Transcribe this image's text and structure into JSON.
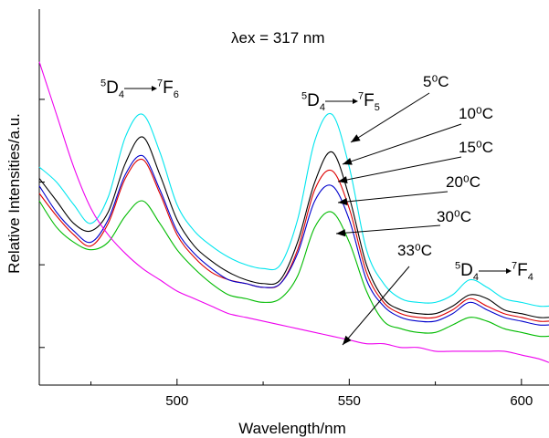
{
  "chart_data": {
    "type": "line",
    "title": "λex = 317 nm",
    "xlabel": "Wavelength/nm",
    "ylabel": "Relative Intensities/a.u.",
    "xlim": [
      460,
      608
    ],
    "ylim": [
      0,
      100
    ],
    "xticks": [
      500,
      550,
      600
    ],
    "x": [
      460,
      465,
      470,
      475,
      480,
      485,
      490,
      495,
      500,
      505,
      510,
      515,
      520,
      525,
      530,
      535,
      540,
      545,
      550,
      555,
      560,
      565,
      570,
      575,
      580,
      585,
      590,
      595,
      600,
      605,
      608
    ],
    "series": [
      {
        "name": "5⁰C",
        "color": "#00e5ee",
        "values": [
          58,
          54,
          48,
          43,
          50,
          66,
          72,
          62,
          48,
          41,
          37,
          34,
          32,
          31,
          32,
          44,
          65,
          72,
          58,
          36,
          27,
          23,
          22,
          22,
          24,
          28,
          26,
          23,
          22,
          21,
          21
        ]
      },
      {
        "name": "10⁰C",
        "color": "#000000",
        "values": [
          55,
          49,
          43,
          41,
          46,
          59,
          66,
          56,
          44,
          37,
          33,
          30,
          28,
          27,
          28,
          38,
          54,
          62,
          50,
          32,
          23,
          20,
          19,
          19,
          21,
          24,
          23,
          20,
          19,
          18,
          18
        ]
      },
      {
        "name": "15⁰C",
        "color": "#dd0000",
        "values": [
          51,
          45,
          40,
          37,
          43,
          55,
          60,
          51,
          40,
          34,
          30,
          28,
          27,
          26,
          27,
          36,
          52,
          57,
          47,
          30,
          22,
          19,
          18,
          18,
          20,
          23,
          21,
          19,
          18,
          17,
          17
        ]
      },
      {
        "name": "20⁰C",
        "color": "#0000cc",
        "values": [
          53,
          46,
          41,
          38,
          44,
          56,
          61,
          52,
          41,
          35,
          31,
          28,
          27,
          26,
          27,
          35,
          49,
          53,
          44,
          28,
          21,
          18,
          17,
          17,
          19,
          22,
          20,
          18,
          17,
          16,
          16
        ]
      },
      {
        "name": "30⁰C",
        "color": "#00bb00",
        "values": [
          49,
          42,
          38,
          36,
          38,
          45,
          49,
          43,
          36,
          31,
          27,
          24,
          23,
          22,
          23,
          29,
          42,
          46,
          38,
          25,
          17,
          15,
          14,
          14,
          16,
          18,
          17,
          15,
          14,
          13,
          13
        ]
      },
      {
        "name": "33⁰C",
        "color": "#ee00ee",
        "values": [
          86,
          72,
          58,
          47,
          40,
          35,
          31,
          28,
          25,
          23,
          21,
          19,
          18,
          17,
          16,
          15,
          14,
          13,
          12,
          11,
          11,
          10,
          10,
          9,
          9,
          9,
          9,
          9,
          8,
          7,
          6
        ]
      }
    ],
    "curve_labels": [
      "5⁰C",
      "10⁰C",
      "15⁰C",
      "20⁰C",
      "30⁰C",
      "33⁰C"
    ],
    "transitions": [
      {
        "upper": "5",
        "upper_sub": "D",
        "upper_num": "4",
        "lower": "7",
        "lower_sub": "F",
        "lower_num": "6"
      },
      {
        "upper": "5",
        "upper_sub": "D",
        "upper_num": "4",
        "lower": "7",
        "lower_sub": "F",
        "lower_num": "5"
      },
      {
        "upper": "5",
        "upper_sub": "D",
        "upper_num": "4",
        "lower": "7",
        "lower_sub": "F",
        "lower_num": "4"
      }
    ],
    "grid": false,
    "legend": "none"
  }
}
